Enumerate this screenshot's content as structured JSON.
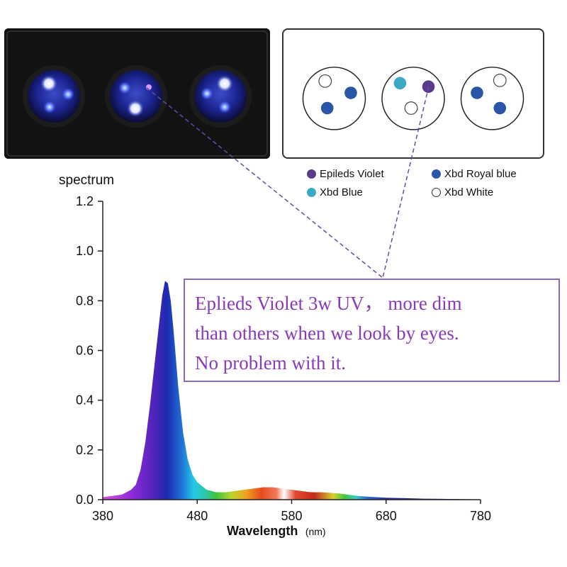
{
  "colors": {
    "violet": "#5b3a8e",
    "royal_blue": "#2b55a6",
    "blue": "#3aa9c4",
    "white": "#ffffff",
    "note_text": "#8a3ab8",
    "note_border": "#8e6bb8"
  },
  "legend": [
    {
      "label": "Epileds Violet",
      "color": "#5b3a8e"
    },
    {
      "label": "Xbd Royal blue",
      "color": "#2b55a6"
    },
    {
      "label": "Xbd Blue",
      "color": "#3aa9c4"
    },
    {
      "label": "Xbd White",
      "color": "#ffffff"
    }
  ],
  "note": {
    "line1": "Eplieds Violet 3w UV，  more dim",
    "line2": "than others when we look by eyes.",
    "line3": "No problem with it."
  },
  "chart_data": {
    "type": "area",
    "title": "spectrum",
    "xlabel": "Wavelength",
    "xunit": "(nm)",
    "ylabel": "",
    "xlim": [
      380,
      780
    ],
    "ylim": [
      0,
      1.2
    ],
    "xticks": [
      380,
      480,
      580,
      680,
      780
    ],
    "yticks": [
      "0.0",
      "0.2",
      "0.4",
      "0.6",
      "0.8",
      "1.0",
      "1.2"
    ],
    "grid": false,
    "series": [
      {
        "x": [
          380,
          390,
          400,
          410,
          415,
          420,
          425,
          430,
          435,
          440,
          443,
          446,
          449,
          452,
          455,
          460,
          465,
          470,
          475,
          480,
          490,
          500,
          510,
          520,
          530,
          540,
          550,
          560,
          570,
          580,
          590,
          600,
          610,
          620,
          630,
          640,
          650,
          660,
          670,
          680,
          700,
          720,
          740,
          760,
          780
        ],
        "values": [
          0.01,
          0.015,
          0.02,
          0.04,
          0.06,
          0.12,
          0.23,
          0.38,
          0.55,
          0.72,
          0.82,
          0.88,
          0.87,
          0.8,
          0.68,
          0.45,
          0.27,
          0.16,
          0.1,
          0.07,
          0.04,
          0.03,
          0.03,
          0.035,
          0.04,
          0.045,
          0.05,
          0.05,
          0.045,
          0.04,
          0.035,
          0.03,
          0.03,
          0.028,
          0.025,
          0.02,
          0.015,
          0.012,
          0.01,
          0.008,
          0.006,
          0.004,
          0.003,
          0.002,
          0.001
        ]
      }
    ]
  }
}
